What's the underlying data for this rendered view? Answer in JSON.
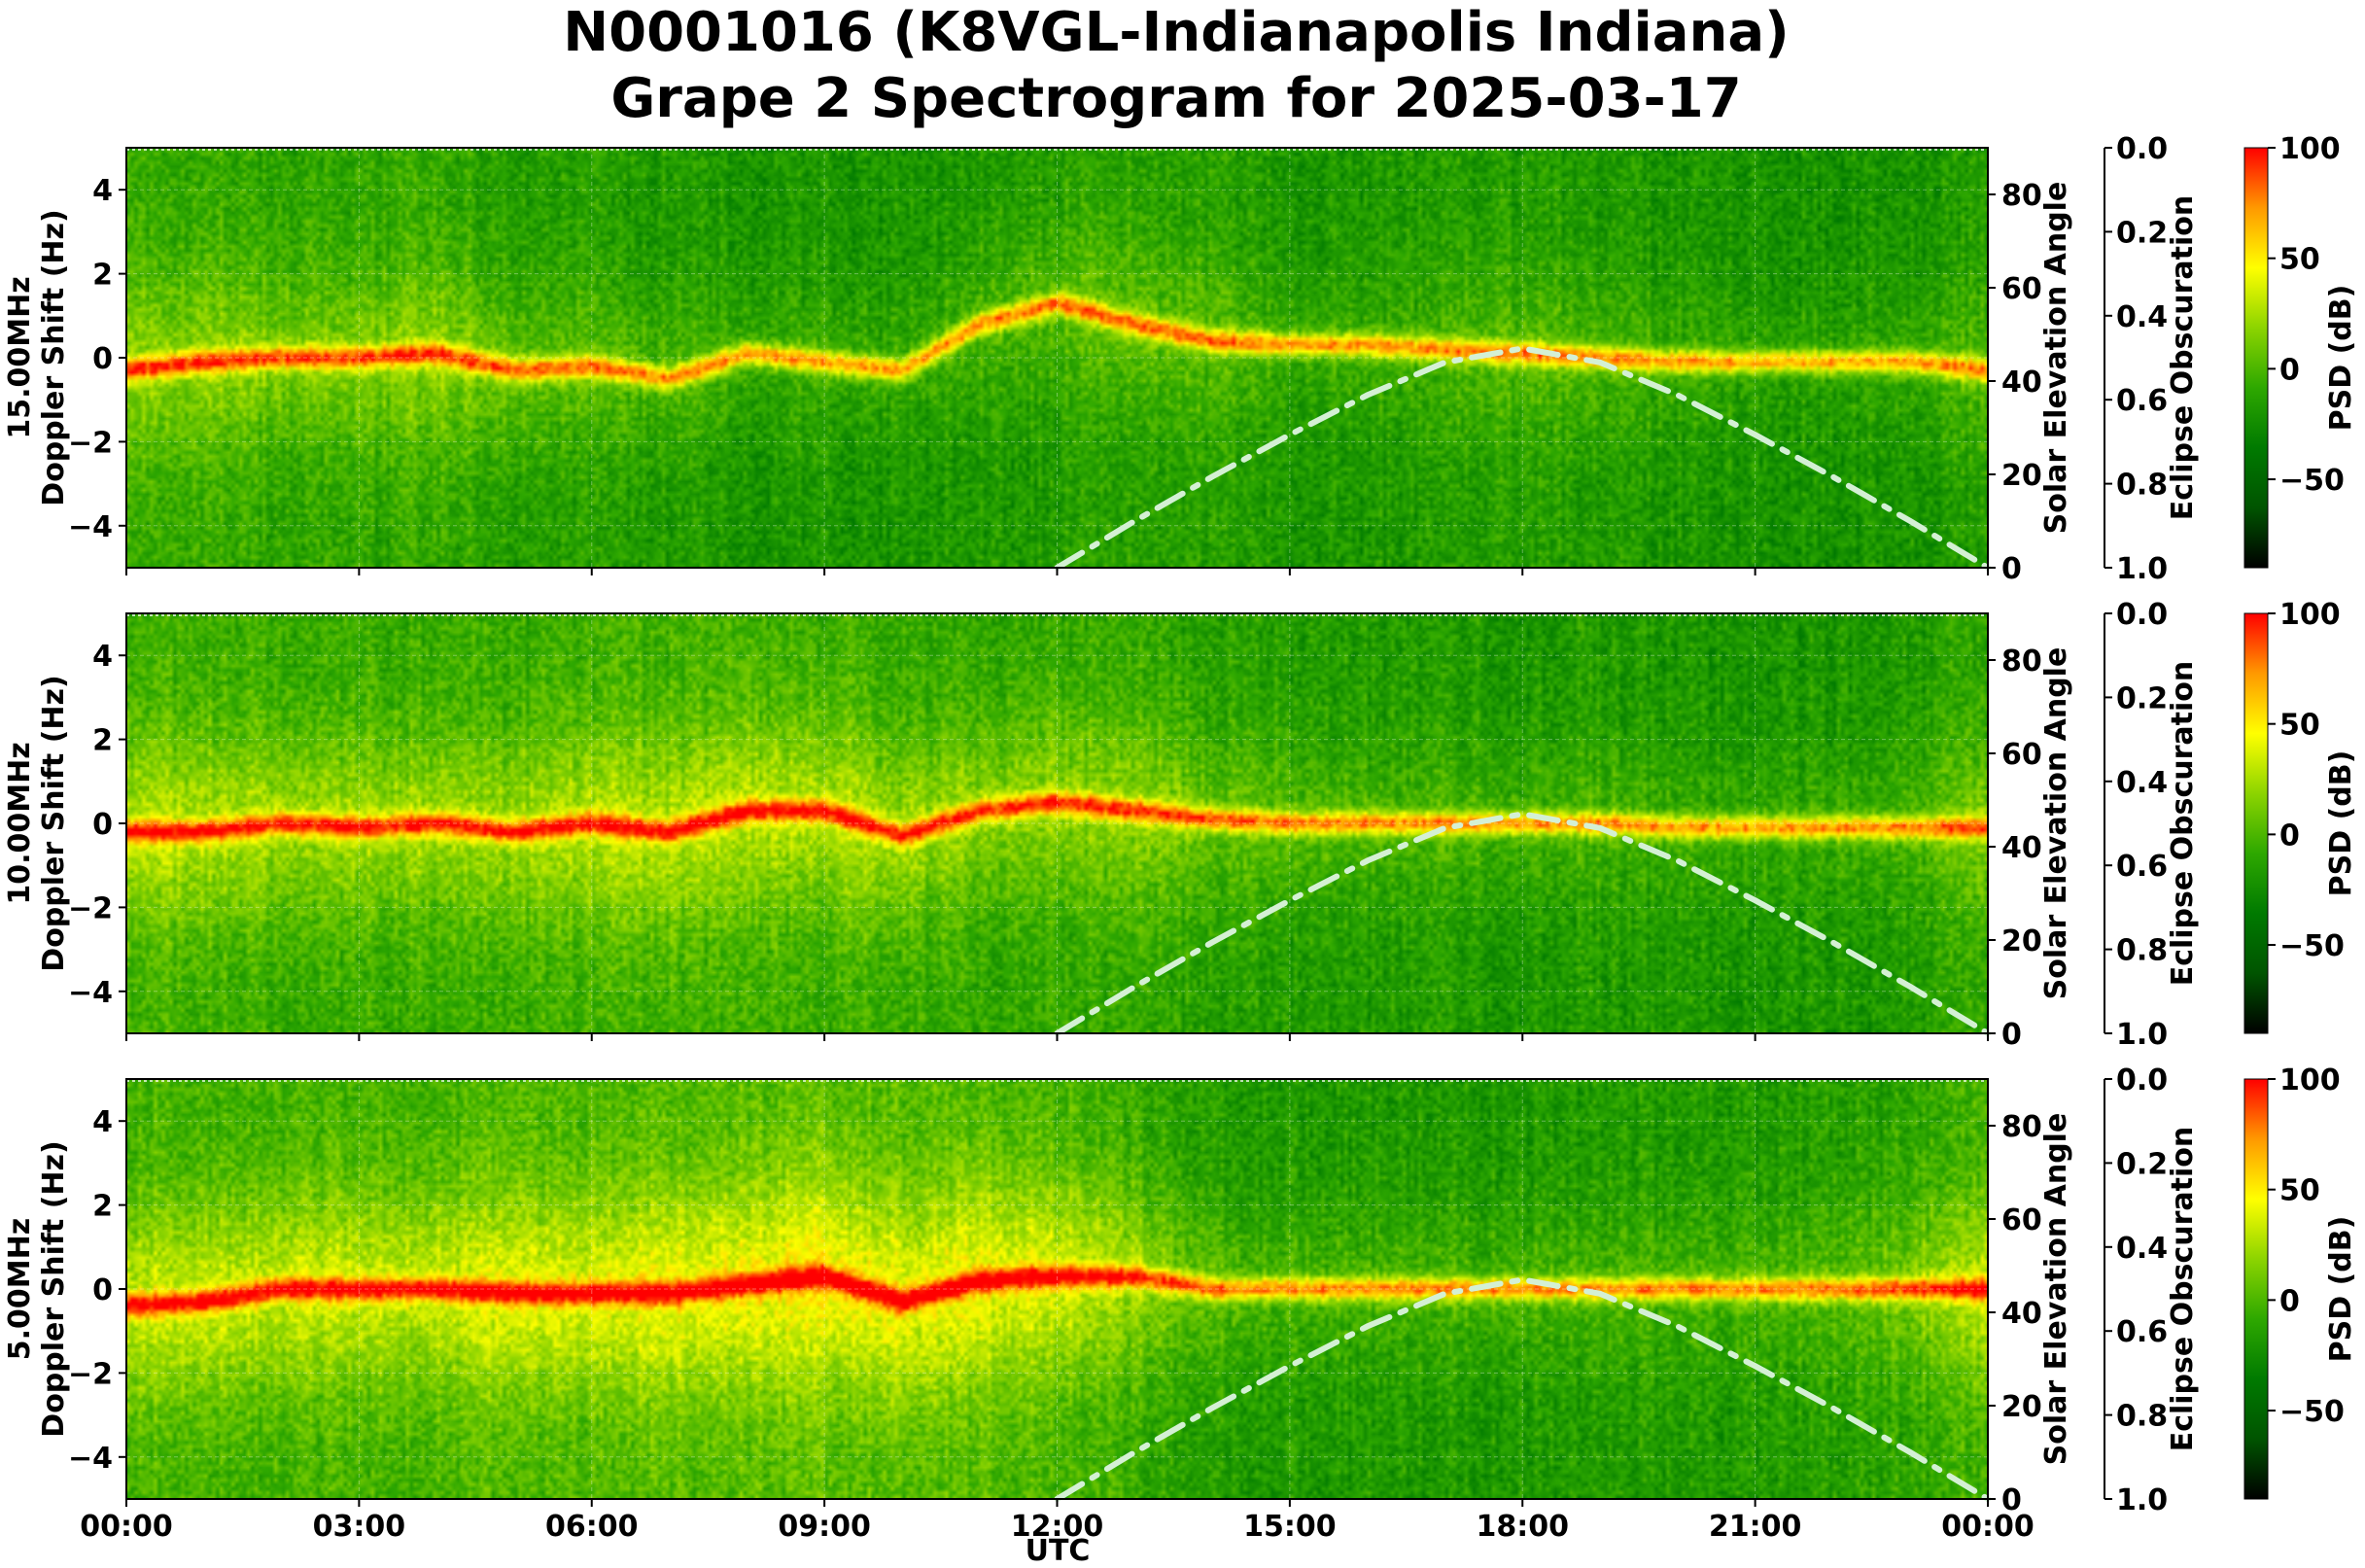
{
  "figure": {
    "title_line1": "N0001016 (K8VGL-Indianapolis Indiana)",
    "title_line2": "Grape 2 Spectrogram for 2025-03-17",
    "xlabel": "UTC"
  },
  "colors": {
    "cmap": [
      "#000000",
      "#005400",
      "#007a00",
      "#2ea800",
      "#8cd400",
      "#ffff00",
      "#ff9900",
      "#ff0000"
    ],
    "sun_curve": "#d4f0d4"
  },
  "chart_data": [
    {
      "type": "heatmap",
      "panel": "15.00MHz",
      "ylabel": "15.00MHz\nDoppler Shift (Hz)",
      "x_ticks": [
        "00:00",
        "03:00",
        "06:00",
        "09:00",
        "12:00",
        "15:00",
        "18:00",
        "21:00",
        "00:00"
      ],
      "xlim_hours": [
        0,
        24
      ],
      "ylim": [
        -5,
        5
      ],
      "y_ticks": [
        -4,
        -2,
        0,
        2,
        4
      ],
      "right_axis": {
        "label": "Solar Elevation Angle",
        "ylim": [
          0,
          90
        ],
        "ticks": [
          0,
          20,
          40,
          60,
          80
        ]
      },
      "eclipse_axis": {
        "label": "Eclipse Obscuration",
        "ylim": [
          1.0,
          0.0
        ],
        "ticks": [
          "0.0",
          "0.2",
          "0.4",
          "0.6",
          "0.8",
          "1.0"
        ]
      },
      "colorbar": {
        "label": "PSD (dB)",
        "range": [
          -90,
          100
        ],
        "ticks": [
          100,
          50,
          0,
          -50
        ]
      },
      "solar_elevation": {
        "hours": [
          12.0,
          13.0,
          14.0,
          15.0,
          16.0,
          17.0,
          18.0,
          19.0,
          20.0,
          21.0,
          22.0,
          23.0,
          24.0
        ],
        "deg": [
          0,
          10,
          19.5,
          28.5,
          37,
          44,
          47,
          44,
          37,
          28.5,
          19.5,
          10,
          0
        ]
      },
      "carrier": {
        "hours": [
          0,
          1,
          2,
          3,
          4,
          5,
          6,
          7,
          8,
          9,
          10,
          11,
          12,
          13,
          14,
          15,
          16,
          17,
          18,
          19,
          20,
          21,
          22,
          23,
          24
        ],
        "doppler_hz": [
          -0.3,
          -0.1,
          0.0,
          0.0,
          0.1,
          -0.3,
          -0.2,
          -0.5,
          0.1,
          -0.1,
          -0.3,
          0.8,
          1.3,
          0.8,
          0.4,
          0.3,
          0.3,
          0.2,
          0.1,
          0.0,
          -0.1,
          -0.1,
          -0.1,
          -0.1,
          -0.3
        ]
      },
      "background_activity": {
        "hours": [
          0,
          1,
          2,
          3,
          4,
          5,
          6,
          7,
          8,
          9,
          10,
          11,
          12,
          13,
          14,
          15,
          16,
          17,
          18,
          19,
          20,
          21,
          22,
          23,
          24
        ],
        "level": [
          0.45,
          0.45,
          0.4,
          0.4,
          0.45,
          0.35,
          0.3,
          0.25,
          0.2,
          0.2,
          0.2,
          0.25,
          0.3,
          0.35,
          0.3,
          0.2,
          0.2,
          0.25,
          0.3,
          0.25,
          0.2,
          0.15,
          0.15,
          0.2,
          0.3
        ]
      }
    },
    {
      "type": "heatmap",
      "panel": "10.00MHz",
      "ylabel": "10.00MHz\nDoppler Shift (Hz)",
      "x_ticks": [
        "00:00",
        "03:00",
        "06:00",
        "09:00",
        "12:00",
        "15:00",
        "18:00",
        "21:00",
        "00:00"
      ],
      "xlim_hours": [
        0,
        24
      ],
      "ylim": [
        -5,
        5
      ],
      "y_ticks": [
        -4,
        -2,
        0,
        2,
        4
      ],
      "right_axis": {
        "label": "Solar Elevation Angle",
        "ylim": [
          0,
          90
        ],
        "ticks": [
          0,
          20,
          40,
          60,
          80
        ]
      },
      "eclipse_axis": {
        "label": "Eclipse Obscuration",
        "ylim": [
          1.0,
          0.0
        ],
        "ticks": [
          "0.0",
          "0.2",
          "0.4",
          "0.6",
          "0.8",
          "1.0"
        ]
      },
      "colorbar": {
        "label": "PSD (dB)",
        "range": [
          -90,
          100
        ],
        "ticks": [
          100,
          50,
          0,
          -50
        ]
      },
      "solar_elevation": {
        "hours": [
          12.0,
          13.0,
          14.0,
          15.0,
          16.0,
          17.0,
          18.0,
          19.0,
          20.0,
          21.0,
          22.0,
          23.0,
          24.0
        ],
        "deg": [
          0,
          10,
          19.5,
          28.5,
          37,
          44,
          47,
          44,
          37,
          28.5,
          19.5,
          10,
          0
        ]
      },
      "carrier": {
        "hours": [
          0,
          1,
          2,
          3,
          4,
          5,
          6,
          7,
          8,
          9,
          10,
          11,
          12,
          13,
          14,
          15,
          16,
          17,
          18,
          19,
          20,
          21,
          22,
          23,
          24
        ],
        "doppler_hz": [
          -0.2,
          -0.2,
          0.0,
          -0.1,
          0.0,
          -0.2,
          0.0,
          -0.2,
          0.3,
          0.3,
          -0.3,
          0.3,
          0.5,
          0.3,
          0.1,
          0.0,
          0.0,
          0.0,
          0.0,
          0.0,
          -0.1,
          -0.1,
          -0.1,
          -0.1,
          -0.1
        ]
      },
      "background_activity": {
        "hours": [
          0,
          1,
          2,
          3,
          4,
          5,
          6,
          7,
          8,
          9,
          10,
          11,
          12,
          13,
          14,
          15,
          16,
          17,
          18,
          19,
          20,
          21,
          22,
          23,
          24
        ],
        "level": [
          0.55,
          0.55,
          0.5,
          0.5,
          0.5,
          0.5,
          0.55,
          0.55,
          0.55,
          0.55,
          0.5,
          0.45,
          0.45,
          0.45,
          0.35,
          0.3,
          0.25,
          0.25,
          0.25,
          0.25,
          0.2,
          0.2,
          0.2,
          0.25,
          0.4
        ]
      }
    },
    {
      "type": "heatmap",
      "panel": "5.00MHz",
      "ylabel": "5.00MHz\nDoppler Shift (Hz)",
      "x_ticks": [
        "00:00",
        "03:00",
        "06:00",
        "09:00",
        "12:00",
        "15:00",
        "18:00",
        "21:00",
        "00:00"
      ],
      "xlim_hours": [
        0,
        24
      ],
      "ylim": [
        -5,
        5
      ],
      "y_ticks": [
        -4,
        -2,
        0,
        2,
        4
      ],
      "right_axis": {
        "label": "Solar Elevation Angle",
        "ylim": [
          0,
          90
        ],
        "ticks": [
          0,
          20,
          40,
          60,
          80
        ]
      },
      "eclipse_axis": {
        "label": "Eclipse Obscuration",
        "ylim": [
          1.0,
          0.0
        ],
        "ticks": [
          "0.0",
          "0.2",
          "0.4",
          "0.6",
          "0.8",
          "1.0"
        ]
      },
      "colorbar": {
        "label": "PSD (dB)",
        "range": [
          -90,
          100
        ],
        "ticks": [
          100,
          50,
          0,
          -50
        ]
      },
      "solar_elevation": {
        "hours": [
          12.0,
          13.0,
          14.0,
          15.0,
          16.0,
          17.0,
          18.0,
          19.0,
          20.0,
          21.0,
          22.0,
          23.0,
          24.0
        ],
        "deg": [
          0,
          10,
          19.5,
          28.5,
          37,
          44,
          47,
          44,
          37,
          28.5,
          19.5,
          10,
          0
        ]
      },
      "carrier": {
        "hours": [
          0,
          1,
          2,
          3,
          4,
          5,
          6,
          7,
          8,
          9,
          10,
          11,
          12,
          13,
          14,
          15,
          16,
          17,
          18,
          19,
          20,
          21,
          22,
          23,
          24
        ],
        "doppler_hz": [
          -0.4,
          -0.3,
          0.0,
          0.0,
          0.0,
          -0.1,
          -0.1,
          -0.1,
          0.1,
          0.3,
          -0.3,
          0.2,
          0.3,
          0.3,
          0.0,
          0.0,
          0.0,
          0.0,
          0.0,
          0.0,
          0.0,
          0.0,
          0.0,
          0.0,
          0.0
        ]
      },
      "background_activity": {
        "hours": [
          0,
          1,
          2,
          3,
          4,
          5,
          6,
          7,
          8,
          9,
          10,
          11,
          12,
          13,
          14,
          15,
          16,
          17,
          18,
          19,
          20,
          21,
          22,
          23,
          24
        ],
        "level": [
          0.6,
          0.6,
          0.6,
          0.6,
          0.6,
          0.65,
          0.65,
          0.7,
          0.7,
          0.75,
          0.7,
          0.7,
          0.65,
          0.5,
          0.3,
          0.25,
          0.25,
          0.25,
          0.25,
          0.25,
          0.25,
          0.25,
          0.3,
          0.4,
          0.6
        ]
      }
    }
  ]
}
